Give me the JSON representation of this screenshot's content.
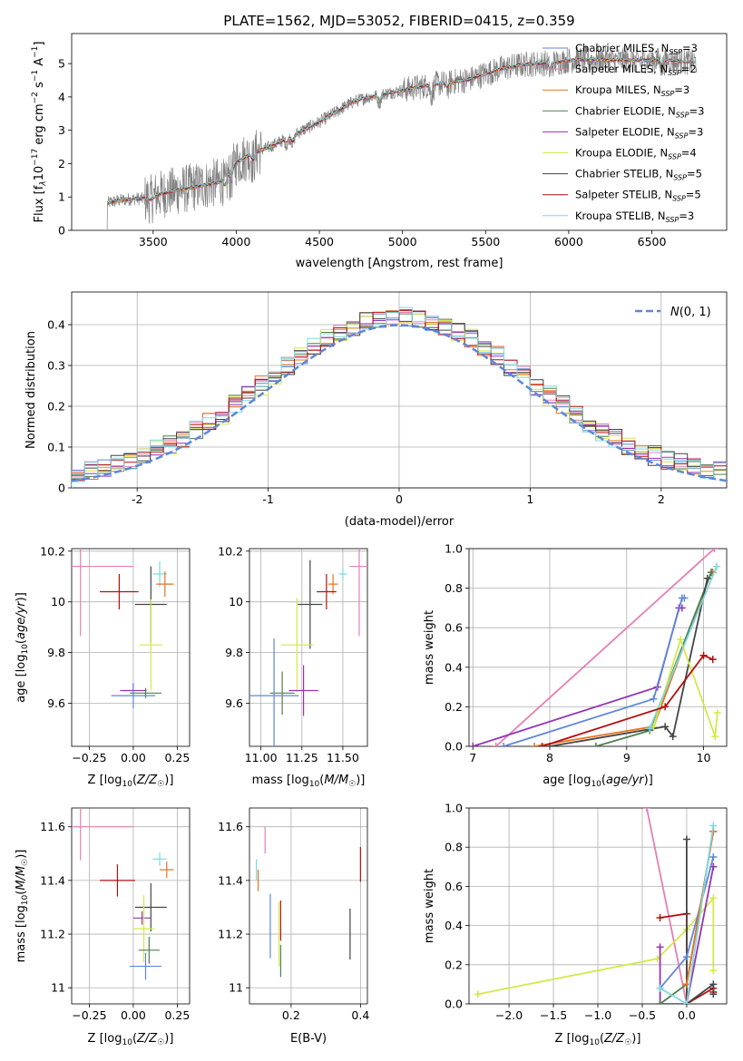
{
  "chart_data": [
    {
      "id": "spectrum",
      "type": "line",
      "title": "PLATE=1562, MJD=53052, FIBERID=0415, z=0.359",
      "xlabel": "wavelength [Angstrom, rest frame]",
      "ylabel": "Flux [f",
      "ylabel_parts": [
        "Flux [f",
        "λ",
        "10",
        "−17",
        " erg cm",
        "−2",
        " s",
        "−1",
        " A",
        "−1",
        "]"
      ],
      "xlim": [
        3010,
        6950
      ],
      "ylim": [
        0,
        5.9
      ],
      "xticks": [
        3500,
        4000,
        4500,
        5000,
        5500,
        6000,
        6500
      ],
      "yticks": [
        0,
        1,
        2,
        3,
        4,
        5
      ],
      "continuum": {
        "x": [
          3210,
          3225,
          3300,
          3400,
          3490,
          3520,
          3600,
          3700,
          3800,
          3900,
          3950,
          4000,
          4100,
          4200,
          4300,
          4400,
          4500,
          4600,
          4700,
          4800,
          4900,
          5000,
          5100,
          5200,
          5300,
          5400,
          5500,
          5600,
          5700,
          5800,
          5900,
          6000,
          6100,
          6200,
          6300,
          6400,
          6500,
          6600,
          6700,
          6760
        ],
        "y": [
          0,
          0.82,
          0.9,
          0.95,
          0.93,
          1.05,
          1.15,
          1.25,
          1.35,
          1.45,
          1.7,
          2.05,
          2.3,
          2.5,
          2.75,
          3.0,
          3.25,
          3.55,
          3.85,
          4.0,
          4.1,
          4.2,
          4.3,
          4.38,
          4.45,
          4.52,
          4.7,
          4.85,
          4.95,
          5.0,
          5.02,
          5.1,
          5.12,
          5.12,
          5.1,
          5.1,
          5.1,
          5.1,
          5.05,
          5.05
        ]
      },
      "legend_position": "upper right",
      "legend": [
        {
          "name": "Chabrier MILES, N",
          "sub": "SSP",
          "n": "=3",
          "color": "#5e86d9"
        },
        {
          "name": "Salpeter MILES, N",
          "sub": "SSP",
          "n": "=2",
          "color": "#e57fb3"
        },
        {
          "name": "Kroupa MILES, N",
          "sub": "SSP",
          "n": "=3",
          "color": "#e8731c"
        },
        {
          "name": "Chabrier ELODIE, N",
          "sub": "SSP",
          "n": "=3",
          "color": "#4f7f4f"
        },
        {
          "name": "Salpeter ELODIE, N",
          "sub": "SSP",
          "n": "=3",
          "color": "#9433b3"
        },
        {
          "name": "Kroupa ELODIE, N",
          "sub": "SSP",
          "n": "=4",
          "color": "#d4e84a"
        },
        {
          "name": "Chabrier STELIB, N",
          "sub": "SSP",
          "n": "=5",
          "color": "#444444"
        },
        {
          "name": "Salpeter STELIB, N",
          "sub": "SSP",
          "n": "=5",
          "color": "#b40f0f"
        },
        {
          "name": "Kroupa STELIB, N",
          "sub": "SSP",
          "n": "=3",
          "color": "#7fd8e0"
        }
      ]
    },
    {
      "id": "residuals",
      "type": "histogram",
      "xlabel": "(data-model)/error",
      "ylabel": "Normed distribution",
      "xlim": [
        -2.5,
        2.5
      ],
      "ylim": [
        0,
        0.48
      ],
      "xticks": [
        -2,
        -1,
        0,
        1,
        2
      ],
      "yticks": [
        0,
        0.1,
        0.2,
        0.3,
        0.4
      ],
      "grid": true,
      "legend": {
        "label": "N(0,1)",
        "style": "dashed",
        "color": "#5e86d9",
        "position": "upper right"
      }
    },
    {
      "id": "age-vs-Z",
      "type": "errorbar",
      "xlabel": "Z [log10(Z/Z☉)]",
      "ylabel": "age [log10(age/yr)]",
      "xlim": [
        -0.35,
        0.32
      ],
      "ylim": [
        9.43,
        10.21
      ],
      "xticks": [
        -0.25,
        0.0,
        0.25
      ],
      "xtick_labels": [
        "−0.25",
        "0.00",
        "0.25"
      ],
      "yticks": [
        9.6,
        9.8,
        10.0,
        10.2
      ],
      "grid": true,
      "points": [
        {
          "color": "#e57fb3",
          "x": -0.3,
          "y": 10.14,
          "xerr": 0.6,
          "yerr": 0.55
        },
        {
          "color": "#7fd8e0",
          "x": 0.15,
          "y": 10.11,
          "xerr": 0.08,
          "yerr": 0.1
        },
        {
          "color": "#e8731c",
          "x": 0.18,
          "y": 10.07,
          "xerr": 0.1,
          "yerr": 0.1
        },
        {
          "color": "#b40f0f",
          "x": -0.08,
          "y": 10.04,
          "xerr": 0.22,
          "yerr": 0.14
        },
        {
          "color": "#444444",
          "x": 0.1,
          "y": 9.99,
          "xerr": 0.18,
          "yerr": 0.3
        },
        {
          "color": "#d4e84a",
          "x": 0.1,
          "y": 9.83,
          "xerr": 0.13,
          "yerr": 0.36
        },
        {
          "color": "#9433b3",
          "x": 0.0,
          "y": 9.65,
          "xerr": 0.15,
          "yerr": 0.05
        },
        {
          "color": "#4f7f4f",
          "x": 0.07,
          "y": 9.64,
          "xerr": 0.18,
          "yerr": 0.04
        },
        {
          "color": "#5e86d9",
          "x": 0.0,
          "y": 9.63,
          "xerr": 0.25,
          "yerr": 0.1
        }
      ]
    },
    {
      "id": "age-vs-mass",
      "type": "errorbar",
      "xlabel": "mass [log10(M/M☉)]",
      "xlim": [
        10.93,
        11.65
      ],
      "ylim": [
        9.43,
        10.21
      ],
      "xticks": [
        11.0,
        11.25,
        11.5
      ],
      "xtick_labels": [
        "11.00",
        "11.25",
        "11.50"
      ],
      "yticks": [
        9.6,
        9.8,
        10.0,
        10.2
      ],
      "grid": true,
      "points": [
        {
          "color": "#e57fb3",
          "x": 11.6,
          "y": 10.14,
          "xerr": 0.12,
          "yerr": 0.55
        },
        {
          "color": "#7fd8e0",
          "x": 11.5,
          "y": 10.11,
          "xerr": 0.05,
          "yerr": 0.05
        },
        {
          "color": "#e8731c",
          "x": 11.44,
          "y": 10.07,
          "xerr": 0.06,
          "yerr": 0.08
        },
        {
          "color": "#b40f0f",
          "x": 11.4,
          "y": 10.04,
          "xerr": 0.12,
          "yerr": 0.14
        },
        {
          "color": "#444444",
          "x": 11.3,
          "y": 9.99,
          "xerr": 0.15,
          "yerr": 0.35
        },
        {
          "color": "#d4e84a",
          "x": 11.22,
          "y": 9.83,
          "xerr": 0.2,
          "yerr": 0.37
        },
        {
          "color": "#9433b3",
          "x": 11.26,
          "y": 9.65,
          "xerr": 0.18,
          "yerr": 0.2
        },
        {
          "color": "#4f7f4f",
          "x": 11.13,
          "y": 9.64,
          "xerr": 0.15,
          "yerr": 0.17
        },
        {
          "color": "#5e86d9",
          "x": 11.08,
          "y": 9.63,
          "xerr": 0.3,
          "yerr": 0.45
        }
      ]
    },
    {
      "id": "mass-weight-vs-age",
      "type": "line",
      "xlabel": "age [log10(age/yr)]",
      "ylabel": "mass weight",
      "xlim": [
        6.95,
        10.3
      ],
      "ylim": [
        0,
        1.0
      ],
      "xticks": [
        7,
        8,
        9,
        10
      ],
      "yticks": [
        0,
        0.2,
        0.4,
        0.6,
        0.8,
        1.0
      ],
      "grid": true,
      "series": [
        {
          "color": "#e57fb3",
          "x": [
            7.3,
            10.14
          ],
          "y": [
            0,
            1.0
          ]
        },
        {
          "color": "#9433b3",
          "x": [
            7.0,
            9.4,
            9.68,
            9.72
          ],
          "y": [
            0,
            0.3,
            0.7,
            0.7
          ]
        },
        {
          "color": "#5e86d9",
          "x": [
            7.4,
            9.35,
            9.72,
            9.75
          ],
          "y": [
            0,
            0.24,
            0.75,
            0.75
          ]
        },
        {
          "color": "#e8731c",
          "x": [
            7.8,
            9.35,
            10.1,
            10.12
          ],
          "y": [
            0,
            0.1,
            0.88,
            0.88
          ]
        },
        {
          "color": "#4f7f4f",
          "x": [
            8.6,
            9.3,
            10.1
          ],
          "y": [
            0,
            0.08,
            0.88
          ]
        },
        {
          "color": "#444444",
          "x": [
            8.0,
            9.5,
            9.6,
            10.05
          ],
          "y": [
            0,
            0.1,
            0.05,
            0.85
          ]
        },
        {
          "color": "#d4e84a",
          "x": [
            9.35,
            9.7,
            10.15,
            10.18
          ],
          "y": [
            0.1,
            0.54,
            0.05,
            0.17
          ]
        },
        {
          "color": "#7fd8e0",
          "x": [
            9.3,
            10.17
          ],
          "y": [
            0.09,
            0.91
          ]
        },
        {
          "color": "#b40f0f",
          "x": [
            7.9,
            9.5,
            10.0,
            10.12
          ],
          "y": [
            0,
            0.2,
            0.46,
            0.44
          ]
        }
      ]
    },
    {
      "id": "mass-vs-Z",
      "type": "errorbar",
      "xlabel": "Z [log10(Z/Z☉)]",
      "ylabel": "mass [log10(M/M☉)]",
      "xlim": [
        -0.35,
        0.32
      ],
      "ylim": [
        10.94,
        11.67
      ],
      "xticks": [
        -0.25,
        0.0,
        0.25
      ],
      "xtick_labels": [
        "−0.25",
        "0.00",
        "0.25"
      ],
      "yticks": [
        11.0,
        11.2,
        11.4,
        11.6
      ],
      "grid": true,
      "points": [
        {
          "color": "#e57fb3",
          "x": -0.3,
          "y": 11.6,
          "xerr": 0.6,
          "yerr": 0.25
        },
        {
          "color": "#7fd8e0",
          "x": 0.15,
          "y": 11.48,
          "xerr": 0.08,
          "yerr": 0.05
        },
        {
          "color": "#e8731c",
          "x": 0.19,
          "y": 11.44,
          "xerr": 0.08,
          "yerr": 0.06
        },
        {
          "color": "#b40f0f",
          "x": -0.09,
          "y": 11.4,
          "xerr": 0.2,
          "yerr": 0.12
        },
        {
          "color": "#444444",
          "x": 0.1,
          "y": 11.3,
          "xerr": 0.18,
          "yerr": 0.18
        },
        {
          "color": "#9433b3",
          "x": 0.05,
          "y": 11.26,
          "xerr": 0.1,
          "yerr": 0.05
        },
        {
          "color": "#d4e84a",
          "x": 0.06,
          "y": 11.22,
          "xerr": 0.12,
          "yerr": 0.25
        },
        {
          "color": "#4f7f4f",
          "x": 0.09,
          "y": 11.14,
          "xerr": 0.12,
          "yerr": 0.1
        },
        {
          "color": "#5e86d9",
          "x": 0.07,
          "y": 11.08,
          "xerr": 0.18,
          "yerr": 0.1
        }
      ]
    },
    {
      "id": "mass-vs-ebv",
      "type": "errorbar",
      "xlabel": "E(B-V)",
      "xlim": [
        0.08,
        0.42
      ],
      "ylim": [
        10.94,
        11.67
      ],
      "xticks": [
        0.2,
        0.4
      ],
      "xtick_labels": [
        "0.2",
        "0.4"
      ],
      "yticks": [
        11.0,
        11.2,
        11.4,
        11.6
      ],
      "grid": true,
      "points": [
        {
          "color": "#7fd8e0",
          "x": 0.1,
          "y": 11.44,
          "yerr": 0.08
        },
        {
          "color": "#e8731c",
          "x": 0.105,
          "y": 11.4,
          "yerr": 0.08
        },
        {
          "color": "#e57fb3",
          "x": 0.125,
          "y": 11.55,
          "yerr": 0.1
        },
        {
          "color": "#5e86d9",
          "x": 0.14,
          "y": 11.23,
          "yerr": 0.24
        },
        {
          "color": "#d4e84a",
          "x": 0.165,
          "y": 11.2,
          "yerr": 0.24
        },
        {
          "color": "#b40f0f",
          "x": 0.17,
          "y": 11.25,
          "yerr": 0.15
        },
        {
          "color": "#4f7f4f",
          "x": 0.17,
          "y": 11.1,
          "yerr": 0.12
        },
        {
          "color": "#444444",
          "x": 0.37,
          "y": 11.2,
          "yerr": 0.19
        },
        {
          "color": "#b40f0f",
          "x": 0.4,
          "y": 11.46,
          "yerr": 0.13
        }
      ]
    },
    {
      "id": "mass-weight-vs-Z",
      "type": "line",
      "xlabel": "Z [log10(Z/Z☉)]",
      "ylabel": "mass weight",
      "xlim": [
        -2.45,
        0.45
      ],
      "ylim": [
        0,
        1.0
      ],
      "xticks": [
        -2.0,
        -1.5,
        -1.0,
        -0.5,
        0.0
      ],
      "xtick_labels": [
        "−2.0",
        "−1.5",
        "−1.0",
        "−0.5",
        "0.0"
      ],
      "yticks": [
        0,
        0.2,
        0.4,
        0.6,
        0.8,
        1.0
      ],
      "grid": true,
      "series": [
        {
          "color": "#e57fb3",
          "x": [
            -0.45,
            0.0
          ],
          "y": [
            1.0,
            0.0
          ]
        },
        {
          "color": "#d4e84a",
          "x": [
            -2.35,
            -0.33,
            0.0,
            0.3,
            0.3
          ],
          "y": [
            0.05,
            0.23,
            0.38,
            0.54,
            0.17
          ]
        },
        {
          "color": "#b40f0f",
          "x": [
            -0.3,
            0.0,
            0.0,
            0.3,
            0.3
          ],
          "y": [
            0.44,
            0.46,
            0.0,
            0.08,
            0.06
          ]
        },
        {
          "color": "#444444",
          "x": [
            0.0,
            0.0,
            0.3,
            0.3
          ],
          "y": [
            0.84,
            0.0,
            0.1,
            0.05
          ]
        },
        {
          "color": "#9433b3",
          "x": [
            -0.3,
            -0.3,
            0.0,
            0.3,
            0.3
          ],
          "y": [
            0.29,
            0.0,
            0.0,
            0.7,
            0.7
          ]
        },
        {
          "color": "#5e86d9",
          "x": [
            -0.3,
            0.0,
            0.3
          ],
          "y": [
            0.08,
            0.24,
            0.75
          ]
        },
        {
          "color": "#4f7f4f",
          "x": [
            -0.3,
            0.0,
            0.3
          ],
          "y": [
            0.0,
            0.1,
            0.88
          ]
        },
        {
          "color": "#e8731c",
          "x": [
            0.0,
            0.3
          ],
          "y": [
            0.1,
            0.88
          ]
        },
        {
          "color": "#7fd8e0",
          "x": [
            -0.3,
            0.0,
            0.3
          ],
          "y": [
            0.08,
            0.0,
            0.91
          ]
        }
      ]
    }
  ]
}
